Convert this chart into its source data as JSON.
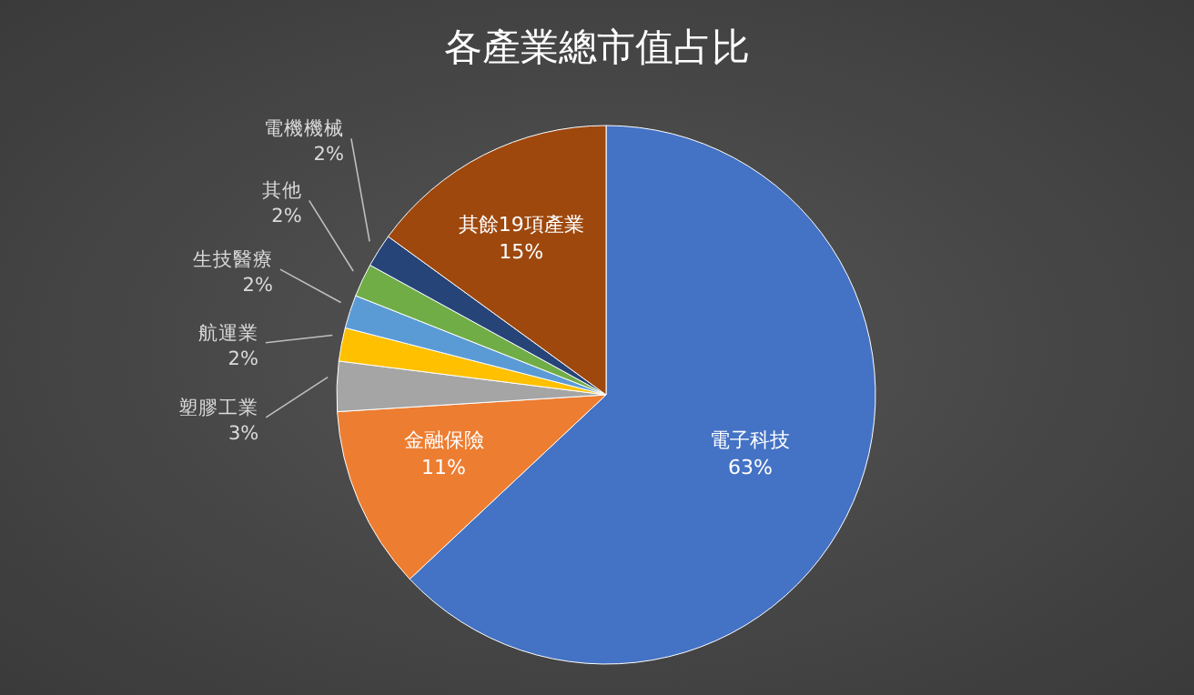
{
  "chart_data": {
    "type": "pie",
    "title": "各產業總市值占比",
    "categories": [
      "電子科技",
      "金融保險",
      "塑膠工業",
      "航運業",
      "生技醫療",
      "其他",
      "電機機械",
      "其餘19項產業"
    ],
    "values": [
      63,
      11,
      3,
      2,
      2,
      2,
      2,
      15
    ],
    "value_labels": [
      "63%",
      "11%",
      "3%",
      "2%",
      "2%",
      "2%",
      "2%",
      "15%"
    ],
    "colors": [
      "#4472c4",
      "#ed7d31",
      "#a5a5a5",
      "#ffc000",
      "#5b9bd5",
      "#70ad47",
      "#264478",
      "#9e480e"
    ]
  }
}
